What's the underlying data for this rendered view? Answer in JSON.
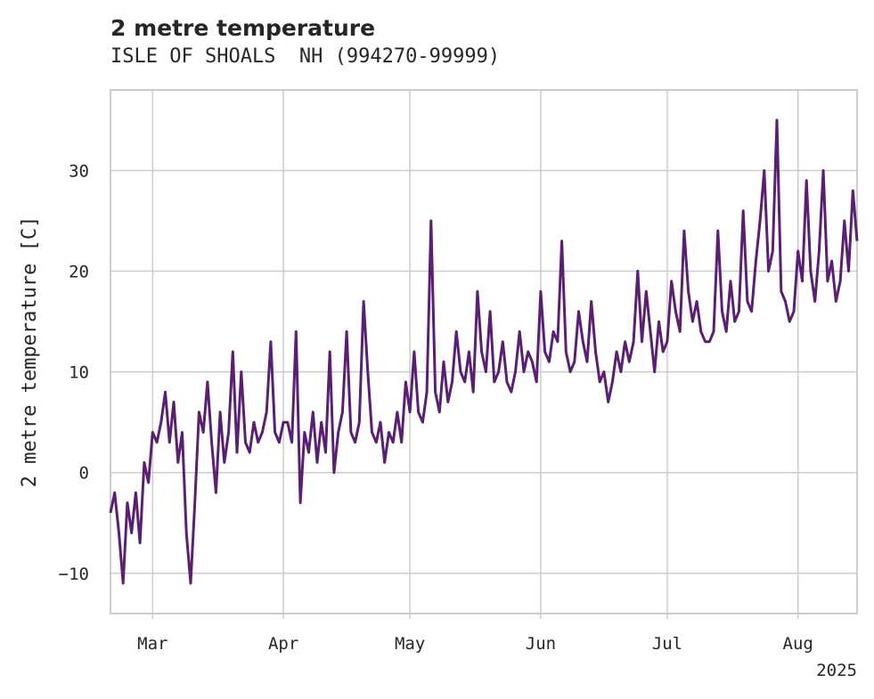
{
  "chart_data": {
    "type": "line",
    "title": "2 metre temperature",
    "subtitle": "ISLE OF SHOALS  NH (994270-99999)",
    "ylabel": "2 metre temperature [C]",
    "xlabel": "",
    "year_label": "2025",
    "x_range": [
      "2025-02-19",
      "2025-08-15"
    ],
    "ylim": [
      -14,
      38
    ],
    "yticks": [
      -10,
      0,
      10,
      20,
      30
    ],
    "xticks": [
      {
        "label": "Mar",
        "date": "2025-03-01"
      },
      {
        "label": "Apr",
        "date": "2025-04-01"
      },
      {
        "label": "May",
        "date": "2025-05-01"
      },
      {
        "label": "Jun",
        "date": "2025-06-01"
      },
      {
        "label": "Jul",
        "date": "2025-07-01"
      },
      {
        "label": "Aug",
        "date": "2025-08-01"
      }
    ],
    "grid": true,
    "series": [
      {
        "color": "#5a1f72",
        "points": [
          [
            "2025-02-19",
            -4
          ],
          [
            "2025-02-20",
            -2
          ],
          [
            "2025-02-21",
            -6
          ],
          [
            "2025-02-22",
            -11
          ],
          [
            "2025-02-23",
            -3
          ],
          [
            "2025-02-24",
            -6
          ],
          [
            "2025-02-25",
            -2
          ],
          [
            "2025-02-26",
            -7
          ],
          [
            "2025-02-27",
            1
          ],
          [
            "2025-02-28",
            -1
          ],
          [
            "2025-03-01",
            4
          ],
          [
            "2025-03-02",
            3
          ],
          [
            "2025-03-03",
            5
          ],
          [
            "2025-03-04",
            8
          ],
          [
            "2025-03-05",
            3
          ],
          [
            "2025-03-06",
            7
          ],
          [
            "2025-03-07",
            1
          ],
          [
            "2025-03-08",
            4
          ],
          [
            "2025-03-09",
            -6
          ],
          [
            "2025-03-10",
            -11
          ],
          [
            "2025-03-11",
            -3
          ],
          [
            "2025-03-12",
            6
          ],
          [
            "2025-03-13",
            4
          ],
          [
            "2025-03-14",
            9
          ],
          [
            "2025-03-15",
            3
          ],
          [
            "2025-03-16",
            -2
          ],
          [
            "2025-03-17",
            6
          ],
          [
            "2025-03-18",
            1
          ],
          [
            "2025-03-19",
            4
          ],
          [
            "2025-03-20",
            12
          ],
          [
            "2025-03-21",
            2
          ],
          [
            "2025-03-22",
            10
          ],
          [
            "2025-03-23",
            3
          ],
          [
            "2025-03-24",
            2
          ],
          [
            "2025-03-25",
            5
          ],
          [
            "2025-03-26",
            3
          ],
          [
            "2025-03-27",
            4
          ],
          [
            "2025-03-28",
            6
          ],
          [
            "2025-03-29",
            13
          ],
          [
            "2025-03-30",
            4
          ],
          [
            "2025-03-31",
            3
          ],
          [
            "2025-04-01",
            5
          ],
          [
            "2025-04-02",
            5
          ],
          [
            "2025-04-03",
            3
          ],
          [
            "2025-04-04",
            14
          ],
          [
            "2025-04-05",
            -3
          ],
          [
            "2025-04-06",
            4
          ],
          [
            "2025-04-07",
            2
          ],
          [
            "2025-04-08",
            6
          ],
          [
            "2025-04-09",
            1
          ],
          [
            "2025-04-10",
            5
          ],
          [
            "2025-04-11",
            2
          ],
          [
            "2025-04-12",
            12
          ],
          [
            "2025-04-13",
            0
          ],
          [
            "2025-04-14",
            4
          ],
          [
            "2025-04-15",
            6
          ],
          [
            "2025-04-16",
            14
          ],
          [
            "2025-04-17",
            4
          ],
          [
            "2025-04-18",
            3
          ],
          [
            "2025-04-19",
            5
          ],
          [
            "2025-04-20",
            17
          ],
          [
            "2025-04-21",
            10
          ],
          [
            "2025-04-22",
            4
          ],
          [
            "2025-04-23",
            3
          ],
          [
            "2025-04-24",
            5
          ],
          [
            "2025-04-25",
            1
          ],
          [
            "2025-04-26",
            4
          ],
          [
            "2025-04-27",
            3
          ],
          [
            "2025-04-28",
            6
          ],
          [
            "2025-04-29",
            3
          ],
          [
            "2025-04-30",
            9
          ],
          [
            "2025-05-01",
            6
          ],
          [
            "2025-05-02",
            12
          ],
          [
            "2025-05-03",
            6
          ],
          [
            "2025-05-04",
            5
          ],
          [
            "2025-05-05",
            8
          ],
          [
            "2025-05-06",
            25
          ],
          [
            "2025-05-07",
            8
          ],
          [
            "2025-05-08",
            6
          ],
          [
            "2025-05-09",
            11
          ],
          [
            "2025-05-10",
            7
          ],
          [
            "2025-05-11",
            9
          ],
          [
            "2025-05-12",
            14
          ],
          [
            "2025-05-13",
            10
          ],
          [
            "2025-05-14",
            9
          ],
          [
            "2025-05-15",
            12
          ],
          [
            "2025-05-16",
            8
          ],
          [
            "2025-05-17",
            18
          ],
          [
            "2025-05-18",
            12
          ],
          [
            "2025-05-19",
            10
          ],
          [
            "2025-05-20",
            16
          ],
          [
            "2025-05-21",
            9
          ],
          [
            "2025-05-22",
            10
          ],
          [
            "2025-05-23",
            13
          ],
          [
            "2025-05-24",
            9
          ],
          [
            "2025-05-25",
            8
          ],
          [
            "2025-05-26",
            10
          ],
          [
            "2025-05-27",
            14
          ],
          [
            "2025-05-28",
            10
          ],
          [
            "2025-05-29",
            12
          ],
          [
            "2025-05-30",
            11
          ],
          [
            "2025-05-31",
            9
          ],
          [
            "2025-06-01",
            18
          ],
          [
            "2025-06-02",
            12
          ],
          [
            "2025-06-03",
            11
          ],
          [
            "2025-06-04",
            14
          ],
          [
            "2025-06-05",
            13
          ],
          [
            "2025-06-06",
            23
          ],
          [
            "2025-06-07",
            12
          ],
          [
            "2025-06-08",
            10
          ],
          [
            "2025-06-09",
            11
          ],
          [
            "2025-06-10",
            16
          ],
          [
            "2025-06-11",
            13
          ],
          [
            "2025-06-12",
            11
          ],
          [
            "2025-06-13",
            17
          ],
          [
            "2025-06-14",
            12
          ],
          [
            "2025-06-15",
            9
          ],
          [
            "2025-06-16",
            10
          ],
          [
            "2025-06-17",
            7
          ],
          [
            "2025-06-18",
            9
          ],
          [
            "2025-06-19",
            12
          ],
          [
            "2025-06-20",
            10
          ],
          [
            "2025-06-21",
            13
          ],
          [
            "2025-06-22",
            11
          ],
          [
            "2025-06-23",
            13
          ],
          [
            "2025-06-24",
            20
          ],
          [
            "2025-06-25",
            13
          ],
          [
            "2025-06-26",
            18
          ],
          [
            "2025-06-27",
            14
          ],
          [
            "2025-06-28",
            10
          ],
          [
            "2025-06-29",
            15
          ],
          [
            "2025-06-30",
            12
          ],
          [
            "2025-07-01",
            13
          ],
          [
            "2025-07-02",
            19
          ],
          [
            "2025-07-03",
            16
          ],
          [
            "2025-07-04",
            14
          ],
          [
            "2025-07-05",
            24
          ],
          [
            "2025-07-06",
            18
          ],
          [
            "2025-07-07",
            15
          ],
          [
            "2025-07-08",
            17
          ],
          [
            "2025-07-09",
            14
          ],
          [
            "2025-07-10",
            13
          ],
          [
            "2025-07-11",
            13
          ],
          [
            "2025-07-12",
            14
          ],
          [
            "2025-07-13",
            24
          ],
          [
            "2025-07-14",
            16
          ],
          [
            "2025-07-15",
            14
          ],
          [
            "2025-07-16",
            19
          ],
          [
            "2025-07-17",
            15
          ],
          [
            "2025-07-18",
            16
          ],
          [
            "2025-07-19",
            26
          ],
          [
            "2025-07-20",
            17
          ],
          [
            "2025-07-21",
            16
          ],
          [
            "2025-07-22",
            21
          ],
          [
            "2025-07-23",
            25
          ],
          [
            "2025-07-24",
            30
          ],
          [
            "2025-07-25",
            20
          ],
          [
            "2025-07-26",
            22
          ],
          [
            "2025-07-27",
            35
          ],
          [
            "2025-07-28",
            18
          ],
          [
            "2025-07-29",
            17
          ],
          [
            "2025-07-30",
            15
          ],
          [
            "2025-07-31",
            16
          ],
          [
            "2025-08-01",
            22
          ],
          [
            "2025-08-02",
            19
          ],
          [
            "2025-08-03",
            29
          ],
          [
            "2025-08-04",
            20
          ],
          [
            "2025-08-05",
            17
          ],
          [
            "2025-08-06",
            22
          ],
          [
            "2025-08-07",
            30
          ],
          [
            "2025-08-08",
            19
          ],
          [
            "2025-08-09",
            21
          ],
          [
            "2025-08-10",
            17
          ],
          [
            "2025-08-11",
            19
          ],
          [
            "2025-08-12",
            25
          ],
          [
            "2025-08-13",
            20
          ],
          [
            "2025-08-14",
            28
          ],
          [
            "2025-08-15",
            23
          ]
        ]
      }
    ]
  }
}
